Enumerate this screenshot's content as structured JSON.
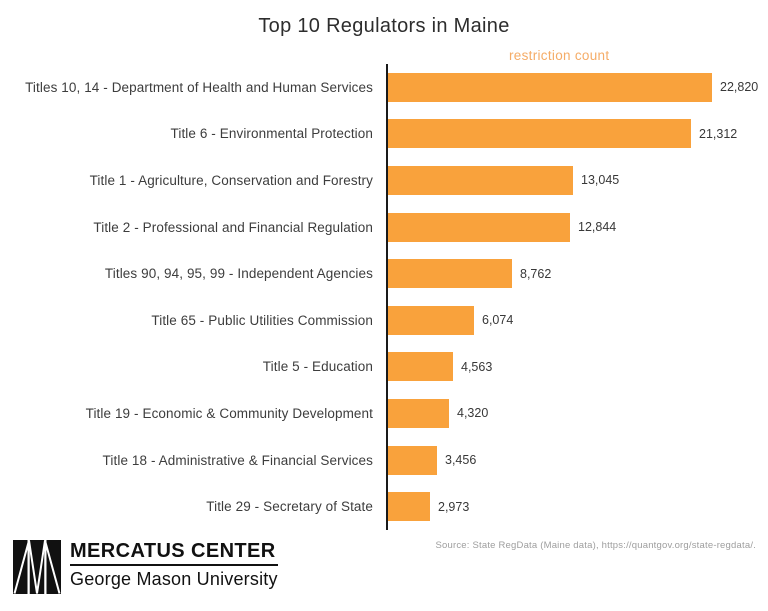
{
  "chart_data": {
    "type": "bar",
    "orientation": "horizontal",
    "title": "Top 10 Regulators in Maine",
    "value_axis_label": "restriction count",
    "categories": [
      "Titles 10, 14 - Department of Health and Human Services",
      "Title 6 - Environmental Protection",
      "Title 1 - Agriculture, Conservation and Forestry",
      "Title 2 - Professional and Financial Regulation",
      "Titles 90, 94, 95, 99 - Independent Agencies",
      "Title 65 - Public Utilities Commission",
      "Title 5 - Education",
      "Title 19 - Economic & Community Development",
      "Title 18 - Administrative & Financial Services",
      "Title 29 - Secretary of State"
    ],
    "values": [
      22820,
      21312,
      13045,
      12844,
      8762,
      6074,
      4563,
      4320,
      3456,
      2973
    ],
    "value_labels": [
      "22,820",
      "21,312",
      "13,045",
      "12,844",
      "8,762",
      "6,074",
      "4,563",
      "4,320",
      "3,456",
      "2,973"
    ],
    "xlim": [
      0,
      22820
    ],
    "grid": false,
    "legend": false
  },
  "colors": {
    "bar": "#F9A23C",
    "value_axis_label": "#F5AC67",
    "axis_line": "#1a1a1a",
    "category_text": "#3d3d3d",
    "value_text": "#383838"
  },
  "footer": {
    "logo_title": "MERCATUS CENTER",
    "logo_subtitle": "George Mason University",
    "source": "Source: State RegData (Maine data), https://quantgov.org/state-regdata/."
  }
}
